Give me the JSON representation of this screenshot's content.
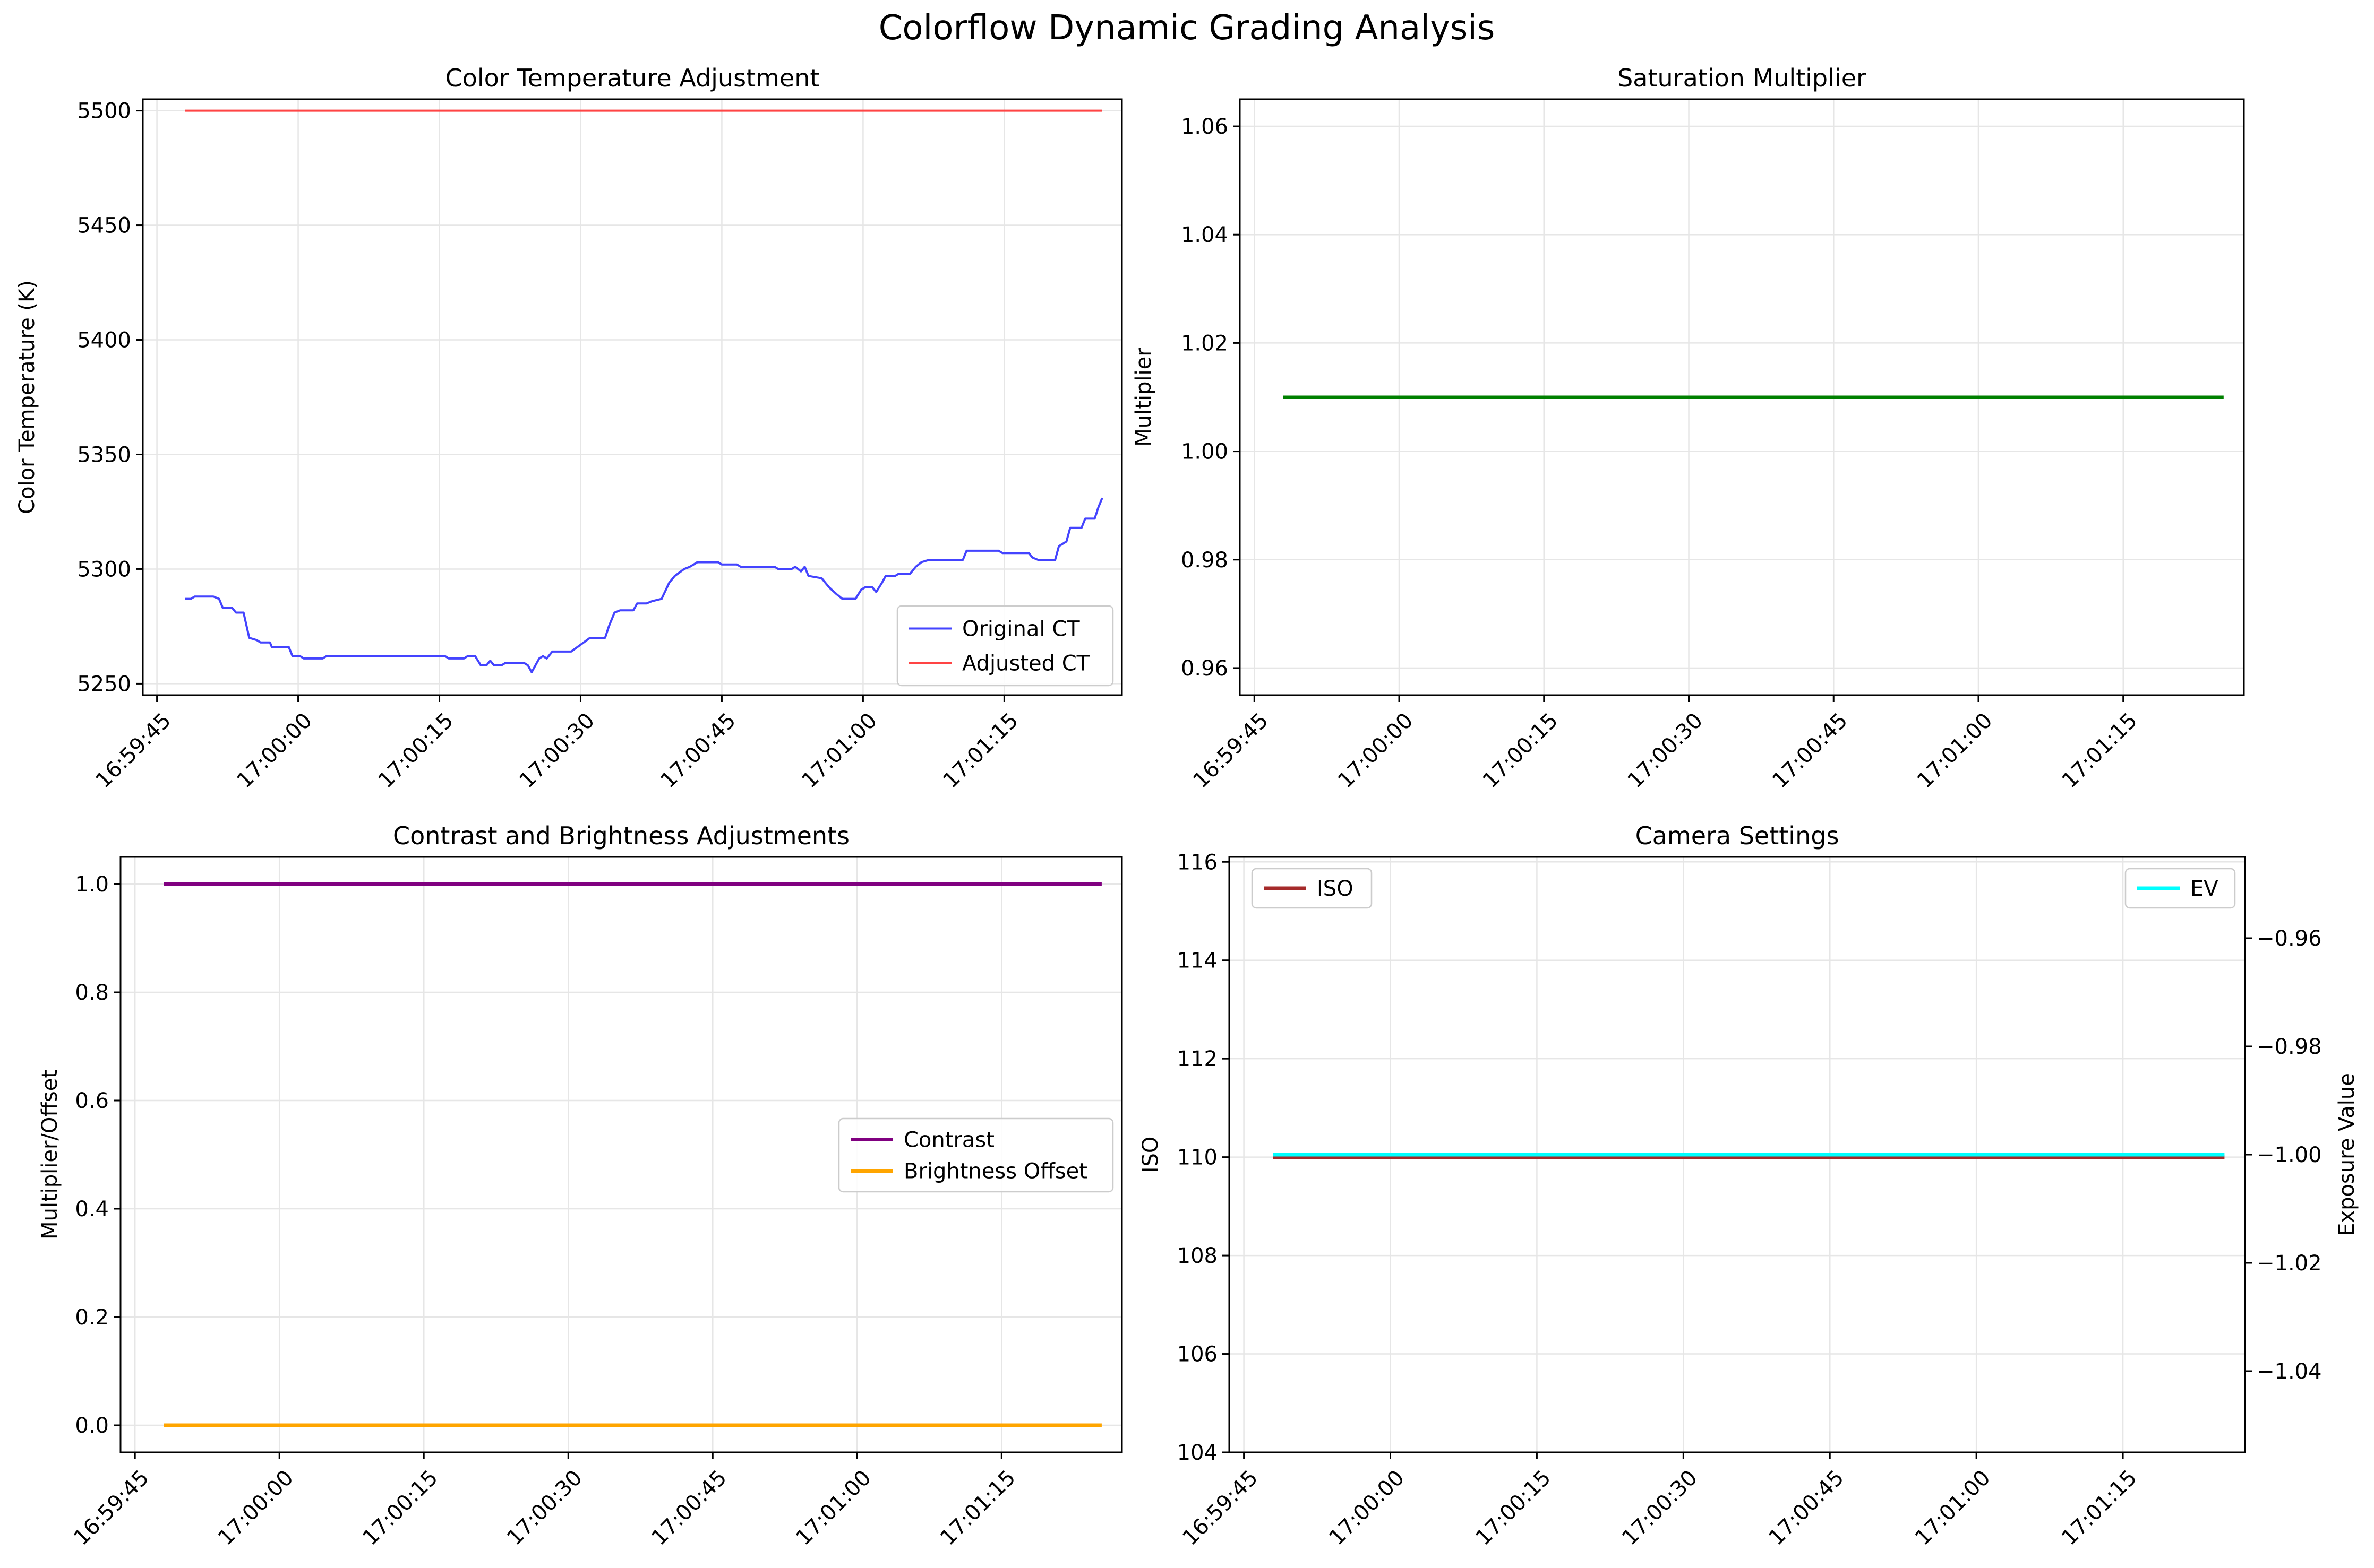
{
  "figure": {
    "title": "Colorflow Dynamic Grading Analysis",
    "time_ticks": [
      "16:59:45",
      "17:00:00",
      "17:00:15",
      "17:00:30",
      "17:00:45",
      "17:01:00",
      "17:01:15"
    ]
  },
  "chart_data": [
    {
      "type": "line",
      "title": "Color Temperature Adjustment",
      "xlabel": "",
      "ylabel": "Color Temperature (K)",
      "x_kind": "time",
      "xlim": [
        "16:59:43.5",
        "17:01:27.5"
      ],
      "xticks": [
        "16:59:45",
        "17:00:00",
        "17:00:15",
        "17:00:30",
        "17:00:45",
        "17:01:00",
        "17:01:15"
      ],
      "ylim": [
        5245,
        5505
      ],
      "yticks": [
        "5250",
        "5300",
        "5350",
        "5400",
        "5450",
        "5500"
      ],
      "grid": true,
      "legend": "lower right",
      "series": [
        {
          "name": "Original CT",
          "color": "#4444ff",
          "width": 4,
          "points": [
            [
              "16:59:48",
              5287
            ],
            [
              "16:59:48.6",
              5287
            ],
            [
              "16:59:49",
              5288
            ],
            [
              "16:59:51",
              5288
            ],
            [
              "16:59:51.6",
              5287
            ],
            [
              "16:59:52",
              5283
            ],
            [
              "16:59:53",
              5283
            ],
            [
              "16:59:53.4",
              5281
            ],
            [
              "16:59:54.2",
              5281
            ],
            [
              "16:59:54.8",
              5270
            ],
            [
              "16:59:55.6",
              5269
            ],
            [
              "16:59:56",
              5268
            ],
            [
              "16:59:57",
              5268
            ],
            [
              "16:59:57.2",
              5266
            ],
            [
              "16:59:59",
              5266
            ],
            [
              "16:59:59.4",
              5262
            ],
            [
              "17:00:00.2",
              5262
            ],
            [
              "17:00:00.6",
              5261
            ],
            [
              "17:00:02.6",
              5261
            ],
            [
              "17:00:03",
              5262
            ],
            [
              "17:00:15.6",
              5262
            ],
            [
              "17:00:16",
              5261
            ],
            [
              "17:00:17.6",
              5261
            ],
            [
              "17:00:18",
              5262
            ],
            [
              "17:00:18.8",
              5262
            ],
            [
              "17:00:19.4",
              5258
            ],
            [
              "17:00:20",
              5258
            ],
            [
              "17:00:20.4",
              5260
            ],
            [
              "17:00:20.8",
              5258
            ],
            [
              "17:00:21.6",
              5258
            ],
            [
              "17:00:22",
              5259
            ],
            [
              "17:00:24",
              5259
            ],
            [
              "17:00:24.4",
              5258
            ],
            [
              "17:00:24.8",
              5255
            ],
            [
              "17:00:25.6",
              5261
            ],
            [
              "17:00:26",
              5262
            ],
            [
              "17:00:26.4",
              5261
            ],
            [
              "17:00:27",
              5264
            ],
            [
              "17:00:29",
              5264
            ],
            [
              "17:00:30",
              5267
            ],
            [
              "17:00:31",
              5270
            ],
            [
              "17:00:32.6",
              5270
            ],
            [
              "17:00:33",
              5275
            ],
            [
              "17:00:33.6",
              5281
            ],
            [
              "17:00:34.2",
              5282
            ],
            [
              "17:00:35.6",
              5282
            ],
            [
              "17:00:36",
              5285
            ],
            [
              "17:00:37",
              5285
            ],
            [
              "17:00:37.6",
              5286
            ],
            [
              "17:00:38.6",
              5287
            ],
            [
              "17:00:39.4",
              5294
            ],
            [
              "17:00:40",
              5297
            ],
            [
              "17:00:41",
              5300
            ],
            [
              "17:00:41.6",
              5301
            ],
            [
              "17:00:42",
              5302
            ],
            [
              "17:00:42.4",
              5303
            ],
            [
              "17:00:44.6",
              5303
            ],
            [
              "17:00:45",
              5302
            ],
            [
              "17:00:46.6",
              5302
            ],
            [
              "17:00:47",
              5301
            ],
            [
              "17:00:50.6",
              5301
            ],
            [
              "17:00:51",
              5300
            ],
            [
              "17:00:52.4",
              5300
            ],
            [
              "17:00:52.8",
              5301
            ],
            [
              "17:00:53.4",
              5299
            ],
            [
              "17:00:53.8",
              5301
            ],
            [
              "17:00:54.2",
              5297
            ],
            [
              "17:00:55.6",
              5296
            ],
            [
              "17:00:56.4",
              5292
            ],
            [
              "17:00:57.2",
              5289
            ],
            [
              "17:00:57.8",
              5287
            ],
            [
              "17:00:59.2",
              5287
            ],
            [
              "17:00:59.8",
              5291
            ],
            [
              "17:01:00.2",
              5292
            ],
            [
              "17:01:01",
              5292
            ],
            [
              "17:01:01.4",
              5290
            ],
            [
              "17:01:02",
              5294
            ],
            [
              "17:01:02.4",
              5297
            ],
            [
              "17:01:03.4",
              5297
            ],
            [
              "17:01:03.8",
              5298
            ],
            [
              "17:01:05",
              5298
            ],
            [
              "17:01:05.6",
              5301
            ],
            [
              "17:01:06.2",
              5303
            ],
            [
              "17:01:07",
              5304
            ],
            [
              "17:01:10.6",
              5304
            ],
            [
              "17:01:11",
              5308
            ],
            [
              "17:01:14.4",
              5308
            ],
            [
              "17:01:14.8",
              5307
            ],
            [
              "17:01:17.6",
              5307
            ],
            [
              "17:01:18",
              5305
            ],
            [
              "17:01:18.6",
              5304
            ],
            [
              "17:01:20.4",
              5304
            ],
            [
              "17:01:20.8",
              5310
            ],
            [
              "17:01:21.6",
              5312
            ],
            [
              "17:01:22",
              5318
            ],
            [
              "17:01:23.2",
              5318
            ],
            [
              "17:01:23.6",
              5322
            ],
            [
              "17:01:24.6",
              5322
            ],
            [
              "17:01:25",
              5327
            ],
            [
              "17:01:25.4",
              5331
            ]
          ]
        },
        {
          "name": "Adjusted CT",
          "color": "#ff4444",
          "width": 4,
          "points": [
            [
              "16:59:48",
              5500
            ],
            [
              "17:01:25.4",
              5500
            ]
          ]
        }
      ]
    },
    {
      "type": "line",
      "title": "Saturation Multiplier",
      "xlabel": "",
      "ylabel": "Multiplier",
      "x_kind": "time",
      "xlim": [
        "16:59:43.5",
        "17:01:27.5"
      ],
      "xticks": [
        "16:59:45",
        "17:00:00",
        "17:00:15",
        "17:00:30",
        "17:00:45",
        "17:01:00",
        "17:01:15"
      ],
      "ylim": [
        0.955,
        1.065
      ],
      "yticks": [
        "0.96",
        "0.98",
        "1.00",
        "1.02",
        "1.04",
        "1.06"
      ],
      "grid": true,
      "series": [
        {
          "color": "#008000",
          "width": 6,
          "points": [
            [
              "16:59:48",
              1.01
            ],
            [
              "17:01:25.4",
              1.01
            ]
          ]
        }
      ]
    },
    {
      "type": "line",
      "title": "Contrast and Brightness Adjustments",
      "xlabel": "",
      "ylabel": "Multiplier/Offset",
      "x_kind": "time",
      "xlim": [
        "16:59:43.5",
        "17:01:27.5"
      ],
      "xticks": [
        "16:59:45",
        "17:00:00",
        "17:00:15",
        "17:00:30",
        "17:00:45",
        "17:01:00",
        "17:01:15"
      ],
      "ylim": [
        -0.05,
        1.05
      ],
      "yticks": [
        "0.0",
        "0.2",
        "0.4",
        "0.6",
        "0.8",
        "1.0"
      ],
      "grid": true,
      "legend": "center right",
      "series": [
        {
          "name": "Contrast",
          "color": "#800080",
          "width": 7,
          "points": [
            [
              "16:59:48",
              1.0
            ],
            [
              "17:01:25.4",
              1.0
            ]
          ]
        },
        {
          "name": "Brightness Offset",
          "color": "#ffa500",
          "width": 7,
          "points": [
            [
              "16:59:48",
              0.0
            ],
            [
              "17:01:25.4",
              0.0
            ]
          ]
        }
      ]
    },
    {
      "type": "line",
      "title": "Camera Settings",
      "xlabel": "",
      "ylabel": "ISO",
      "y2label": "Exposure Value",
      "x_kind": "time",
      "xlim": [
        "16:59:43.5",
        "17:01:27.5"
      ],
      "xticks": [
        "16:59:45",
        "17:00:00",
        "17:00:15",
        "17:00:30",
        "17:00:45",
        "17:01:00",
        "17:01:15"
      ],
      "ylim": [
        104,
        116.1
      ],
      "yticks": [
        "104",
        "106",
        "108",
        "110",
        "112",
        "114",
        "116"
      ],
      "y2lim": [
        -1.055,
        -0.945
      ],
      "y2ticks": [
        "−1.04",
        "−1.02",
        "−1.00",
        "−0.98",
        "−0.96"
      ],
      "grid": true,
      "legend": "upper left",
      "legend2": "upper right",
      "series": [
        {
          "name": "ISO",
          "axis": "left",
          "color": "#a52a2a",
          "width": 7,
          "points": [
            [
              "16:59:48",
              110
            ],
            [
              "17:01:25.4",
              110
            ]
          ]
        },
        {
          "name": "EV",
          "axis": "right",
          "color": "#00ffff",
          "width": 7,
          "points": [
            [
              "16:59:48",
              -1.0
            ],
            [
              "17:01:25.4",
              -1.0
            ]
          ]
        }
      ]
    }
  ]
}
